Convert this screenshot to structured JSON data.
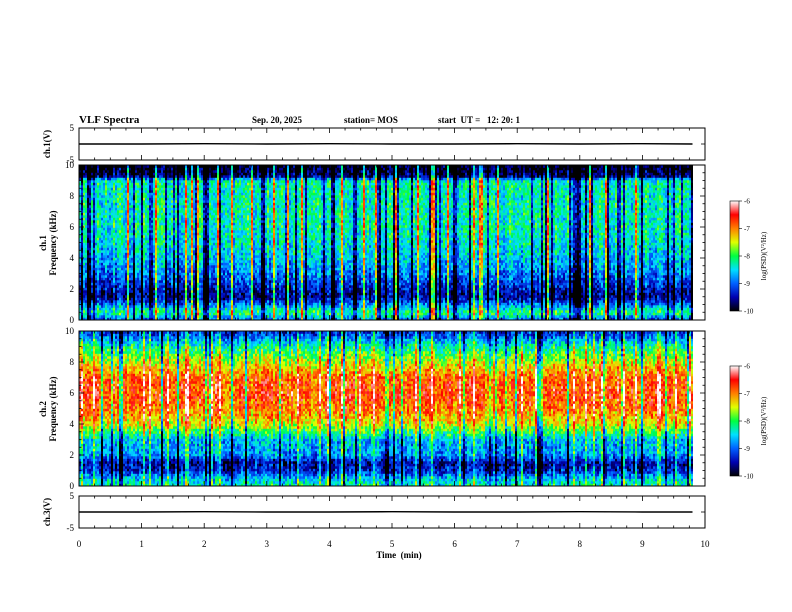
{
  "header": {
    "title": "VLF Spectra",
    "date": "Sep. 20, 2025",
    "station": "station= MOS",
    "start": "start  UT =   12: 20: 1"
  },
  "chart_data": [
    {
      "type": "line",
      "panel": "ch1-waveform",
      "ylabel": "ch.1(V)",
      "ylim": [
        -5,
        5
      ],
      "yticks": [
        "5",
        "-5"
      ],
      "x": [
        0,
        1,
        2,
        3,
        4,
        5,
        6,
        7,
        8,
        9,
        9.8
      ],
      "values": [
        0,
        0,
        0.1,
        0,
        0.1,
        0,
        0,
        0.1,
        0,
        0.1,
        0
      ]
    },
    {
      "type": "heatmap",
      "panel": "ch1-spectrogram",
      "ylabel": [
        "ch.1",
        "Frequency  (kHz)"
      ],
      "ylim": [
        0,
        10
      ],
      "yticks": [
        "0",
        "2",
        "4",
        "6",
        "8",
        "10"
      ],
      "band_profile_khz": [
        0,
        0.5,
        1,
        1.5,
        2,
        3,
        4,
        5,
        6,
        7,
        8,
        9,
        9.3,
        10
      ],
      "band_profile_log_psd": [
        -9.1,
        -8.0,
        -8.9,
        -9.6,
        -9.4,
        -8.9,
        -8.6,
        -8.4,
        -8.3,
        -8.3,
        -8.3,
        -8.3,
        -9.7,
        -10.0
      ],
      "colorbar": {
        "label": "log(PSD)(V²/Hz)",
        "ticks": [
          "-6",
          "-7",
          "-8",
          "-9",
          "-10"
        ],
        "range": [
          -10,
          -6
        ]
      }
    },
    {
      "type": "heatmap",
      "panel": "ch2-spectrogram",
      "ylabel": [
        "ch.2",
        "Frequency  (kHz)"
      ],
      "ylim": [
        0,
        10
      ],
      "yticks": [
        "0",
        "2",
        "4",
        "6",
        "8",
        "10"
      ],
      "band_profile_khz": [
        0,
        0.5,
        1,
        1.5,
        2,
        3,
        3.5,
        4,
        5,
        6,
        7,
        8,
        9,
        9.5,
        10
      ],
      "band_profile_log_psd": [
        -8.2,
        -8.6,
        -9.3,
        -9.5,
        -8.8,
        -8.6,
        -8.0,
        -7.4,
        -6.9,
        -6.7,
        -6.8,
        -7.5,
        -8.2,
        -8.8,
        -9.3
      ],
      "colorbar": {
        "label": "log(PSD)(V²/Hz)",
        "ticks": [
          "-6",
          "-7",
          "-8",
          "-9",
          "-10"
        ],
        "range": [
          -10,
          -6
        ]
      }
    },
    {
      "type": "line",
      "panel": "ch3-waveform",
      "ylabel": "ch.3(V)",
      "ylim": [
        -5,
        5
      ],
      "yticks": [
        "5",
        "-5"
      ],
      "x": [
        0,
        1,
        2,
        3,
        4,
        5,
        6,
        7,
        8,
        9,
        9.8
      ],
      "values": [
        0,
        0,
        0.1,
        0,
        0,
        0.1,
        0,
        0,
        0.1,
        0,
        0
      ]
    }
  ],
  "x_axis": {
    "label": "Time  (min)",
    "range": [
      0,
      10
    ],
    "ticks": [
      "0",
      "1",
      "2",
      "3",
      "4",
      "5",
      "6",
      "7",
      "8",
      "9",
      "10"
    ],
    "data_end_min": 9.8
  },
  "colors": {
    "colormap": [
      "#000000",
      "#0000b0",
      "#0060ff",
      "#00e0ff",
      "#00ff40",
      "#e0ff00",
      "#ff8000",
      "#ff0000",
      "#ffffff"
    ]
  }
}
